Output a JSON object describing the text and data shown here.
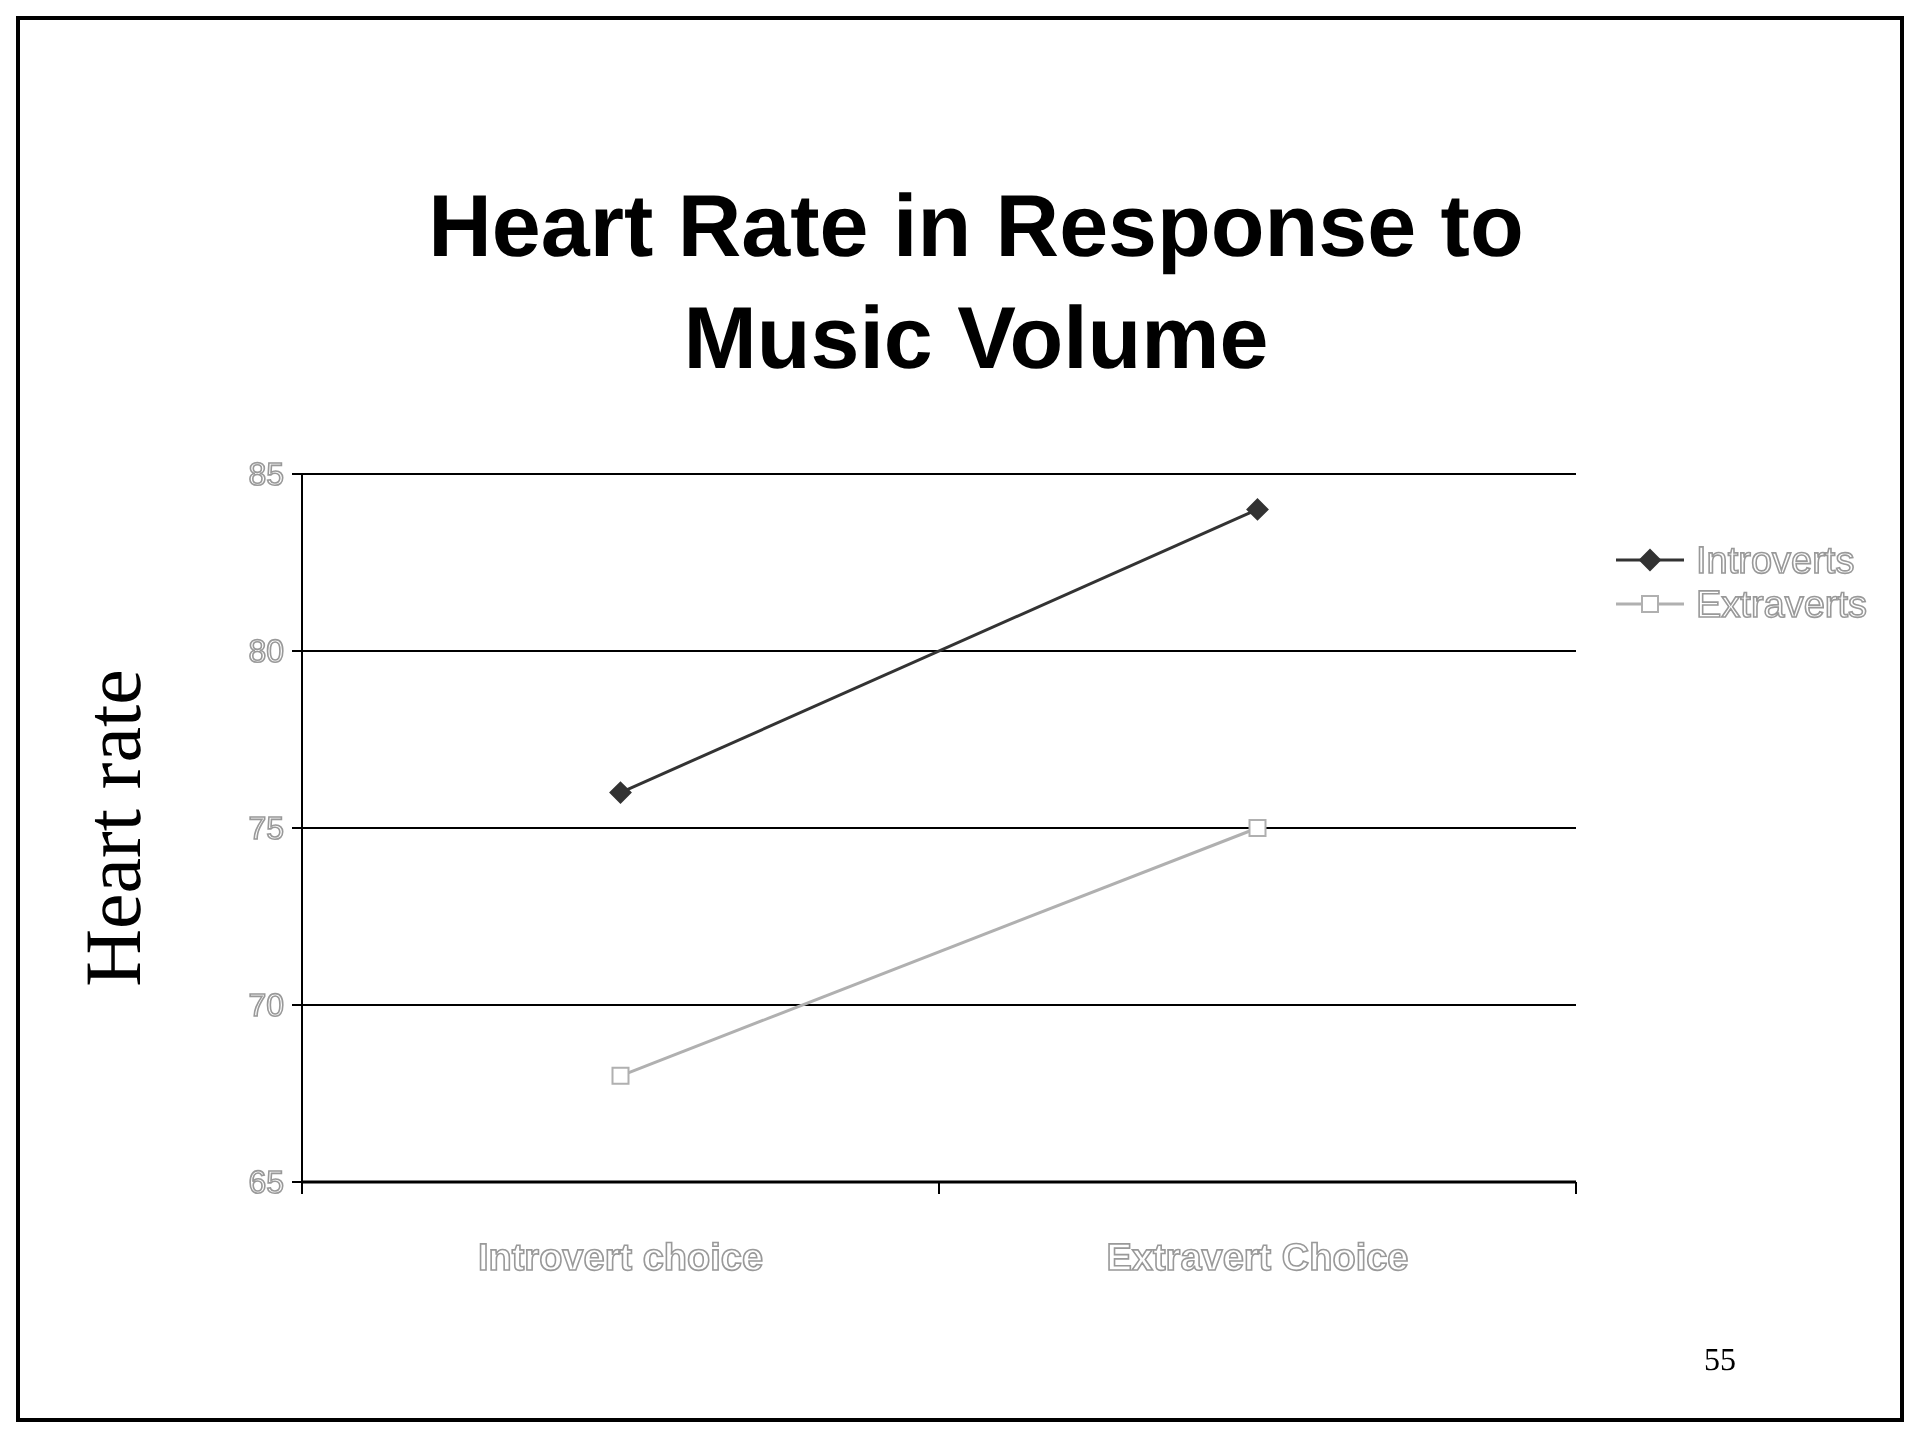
{
  "chart_data": {
    "type": "line",
    "title": "Heart Rate in Response to Music Volume",
    "ylabel": "Heart rate",
    "categories": [
      "Introvert choice",
      "Extravert Choice"
    ],
    "series": [
      {
        "name": "Introverts",
        "color": "#333333",
        "marker": "diamond",
        "values": [
          76,
          84
        ]
      },
      {
        "name": "Extraverts",
        "color": "#b0b0b0",
        "marker": "square",
        "values": [
          68,
          75
        ]
      }
    ],
    "ylim": [
      65,
      85
    ],
    "yticks": [
      65,
      70,
      75,
      80,
      85
    ],
    "grid": "y",
    "legend": "right",
    "annotations": [
      "55"
    ]
  }
}
